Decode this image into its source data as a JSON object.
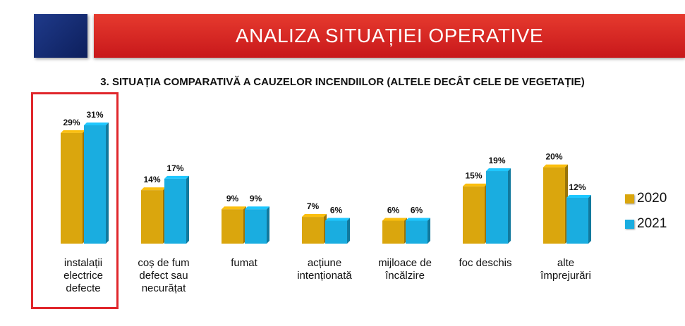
{
  "header": {
    "title": "ANALIZA SITUAȚIEI OPERATIVE"
  },
  "chart_data": {
    "type": "bar",
    "title": "3. SITUAȚIA COMPARATIVĂ A CAUZELOR INCENDIILOR (ALTELE DECÂT CELE DE VEGETAȚIE)",
    "categories": [
      [
        "instalații",
        "electrice",
        "defecte"
      ],
      [
        "coș de fum",
        "defect sau",
        "necurățat"
      ],
      [
        "fumat"
      ],
      [
        "acțiune",
        "intenționată"
      ],
      [
        "mijloace de",
        "încălzire"
      ],
      [
        "foc deschis"
      ],
      [
        "alte",
        "împrejurări"
      ]
    ],
    "series": [
      {
        "name": "2020",
        "color": "#DAA60D",
        "values": [
          29,
          14,
          9,
          7,
          6,
          15,
          20
        ],
        "labels": [
          "29%",
          "14%",
          "9%",
          "7%",
          "6%",
          "15%",
          "20%"
        ]
      },
      {
        "name": "2021",
        "color": "#1AADE0",
        "values": [
          31,
          17,
          9,
          6,
          6,
          19,
          12
        ],
        "labels": [
          "31%",
          "17%",
          "9%",
          "6%",
          "6%",
          "19%",
          "12%"
        ]
      }
    ],
    "ylim": [
      0,
      31
    ],
    "grid": false,
    "legend": "right",
    "highlighted_category_index": 0
  }
}
